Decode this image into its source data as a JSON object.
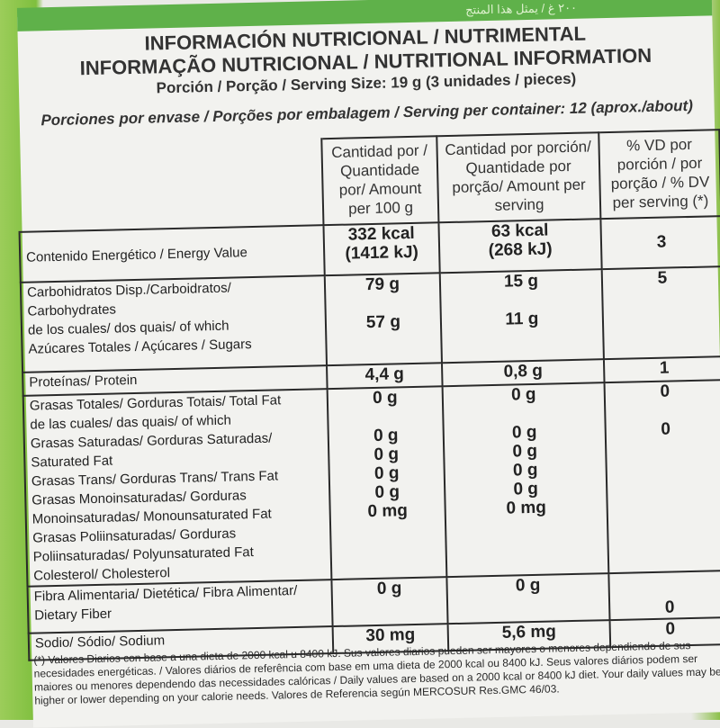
{
  "header": {
    "line1": "INFORMACIÓN NUTRICIONAL / NUTRIMENTAL",
    "line2": "INFORMAÇÃO NUTRICIONAL / NUTRITIONAL INFORMATION",
    "serving_size": "Porción / Porção / Serving Size: 19 g (3 unidades / pieces)",
    "per_container": "Porciones por envase / Porções por embalagem / Serving per container: 12 (aprox./about)"
  },
  "columns": {
    "per100": "Cantidad por / Quantidade por/ Amount per 100 g",
    "perServing": "Cantidad por porción/ Quantidade por porção/ Amount per serving",
    "dv": "% VD por porción / por porção / % DV per serving (*)"
  },
  "rows": {
    "energy": {
      "label": "Contenido Energético / Energy Value",
      "v100a": "332 kcal",
      "v100b": "(1412 kJ)",
      "vsa": "63 kcal",
      "vsb": "(268 kJ)",
      "dv": "3"
    },
    "carbs": {
      "label": "Carbohidratos Disp./Carboidratos/ Carbohydrates",
      "sub": "de los cuales/ dos quais/ of which",
      "v100": "79 g",
      "vs": "15 g",
      "dv": "5"
    },
    "sugars": {
      "label": "Azúcares Totales / Açúcares / Sugars",
      "v100": "57 g",
      "vs": "11 g"
    },
    "protein": {
      "label": "Proteínas/ Protein",
      "v100": "4,4 g",
      "vs": "0,8 g",
      "dv": "1"
    },
    "fat": {
      "label": "Grasas Totales/ Gorduras Totais/ Total Fat",
      "sub": "de las cuales/ das quais/ of which",
      "v100": "0 g",
      "vs": "0 g",
      "dv": "0"
    },
    "satfat": {
      "label": "Grasas Saturadas/ Gorduras Saturadas/ Saturated Fat",
      "v100": "0 g",
      "vs": "0 g",
      "dv": "0"
    },
    "transfat": {
      "label": "Grasas Trans/ Gorduras Trans/ Trans Fat",
      "v100": "0 g",
      "vs": "0 g"
    },
    "mono": {
      "label": "Grasas Monoinsaturadas/ Gorduras Monoinsaturadas/ Monounsaturated Fat",
      "v100": "0 g",
      "vs": "0 g"
    },
    "poly": {
      "label": "Grasas Poliinsaturadas/ Gorduras Poliinsaturadas/ Polyunsaturated Fat",
      "v100": "0 g",
      "vs": "0 g"
    },
    "chol": {
      "label": "Colesterol/ Cholesterol",
      "v100": "0 mg",
      "vs": "0 mg"
    },
    "fiber": {
      "label": "Fibra Alimentaria/ Dietética/ Fibra Alimentar/ Dietary Fiber",
      "v100": "0 g",
      "vs": "0 g",
      "dv": "0"
    },
    "sodium": {
      "label": "Sodio/ Sódio/ Sodium",
      "v100": "30 mg",
      "vs": "5,6 mg",
      "dv": "0"
    }
  },
  "footnote": "(*) Valores Diarios con base a una dieta de 2000 kcal u 8400 kJ. Sus valores diarios pueden ser mayores o menores dependiendo de sus necesidades energéticas. / Valores diários de referência com base em uma dieta de 2000 kcal ou 8400 kJ. Seus valores diários podem ser maiores ou menores dependendo das necessidades calóricas / Daily values are based on a 2000 kcal or 8400 kJ diet. Your daily values may be higher or lower depending on your calorie needs. Valores de Referencia según MERCOSUR Res.GMC 46/03.",
  "colors": {
    "green": "#5fb14a",
    "ink": "#222222",
    "paper": "#f2f2ef"
  }
}
